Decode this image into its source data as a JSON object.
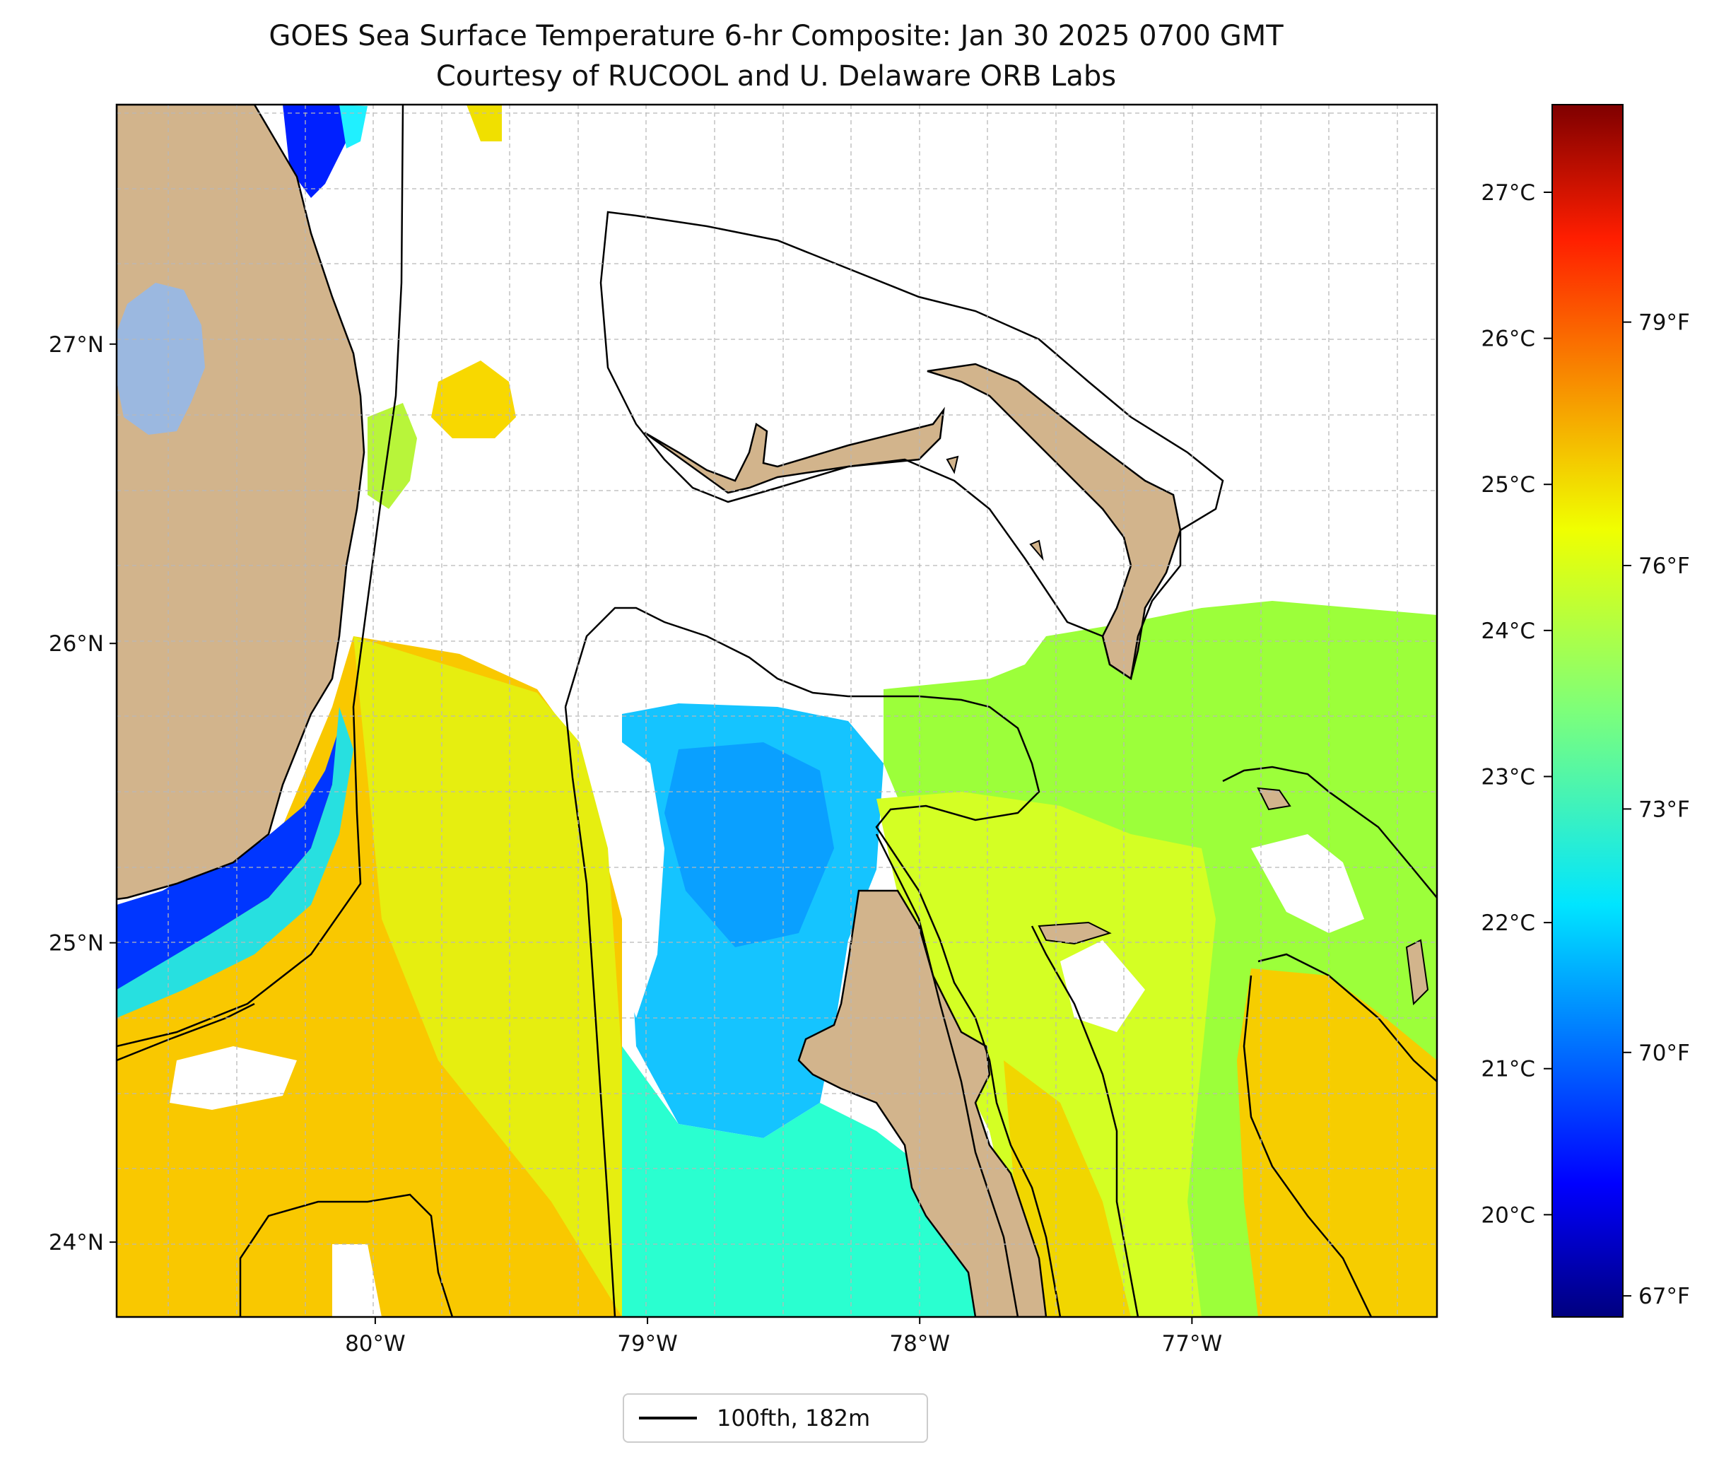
{
  "title": {
    "line1": "GOES Sea Surface Temperature 6-hr Composite: Jan 30 2025 0700 GMT",
    "line2": "Courtesy of RUCOOL and U. Delaware ORB Labs"
  },
  "map": {
    "lon_range": [
      -80.95,
      -76.1
    ],
    "lat_range": [
      23.75,
      27.8
    ],
    "lon_ticks": [
      {
        "value": -80,
        "label": "80°W"
      },
      {
        "value": -79,
        "label": "79°W"
      },
      {
        "value": -78,
        "label": "78°W"
      },
      {
        "value": -77,
        "label": "77°W"
      }
    ],
    "lat_ticks": [
      {
        "value": 27,
        "label": "27°N"
      },
      {
        "value": 26,
        "label": "26°N"
      },
      {
        "value": 25,
        "label": "25°N"
      },
      {
        "value": 24,
        "label": "24°N"
      }
    ],
    "gridlines": "dashed",
    "land_color": "#d2b48c",
    "lake_color": "#9bb8e0",
    "cloud_mask_color": "#ffffff",
    "isobath_color": "#000000"
  },
  "colorbar": {
    "colormap": "jet",
    "range_c": [
      19.3,
      27.6
    ],
    "celsius_ticks": [
      {
        "value": 20,
        "label": "20°C"
      },
      {
        "value": 21,
        "label": "21°C"
      },
      {
        "value": 22,
        "label": "22°C"
      },
      {
        "value": 23,
        "label": "23°C"
      },
      {
        "value": 24,
        "label": "24°C"
      },
      {
        "value": 25,
        "label": "25°C"
      },
      {
        "value": 26,
        "label": "26°C"
      },
      {
        "value": 27,
        "label": "27°C"
      }
    ],
    "fahrenheit_ticks": [
      {
        "value": 67,
        "label": "67°F"
      },
      {
        "value": 70,
        "label": "70°F"
      },
      {
        "value": 73,
        "label": "73°F"
      },
      {
        "value": 76,
        "label": "76°F"
      },
      {
        "value": 79,
        "label": "79°F"
      }
    ]
  },
  "legend": {
    "entries": [
      {
        "label": "100fth, 182m",
        "color": "#000000",
        "style": "solid"
      }
    ],
    "placement": "bottom-center"
  }
}
